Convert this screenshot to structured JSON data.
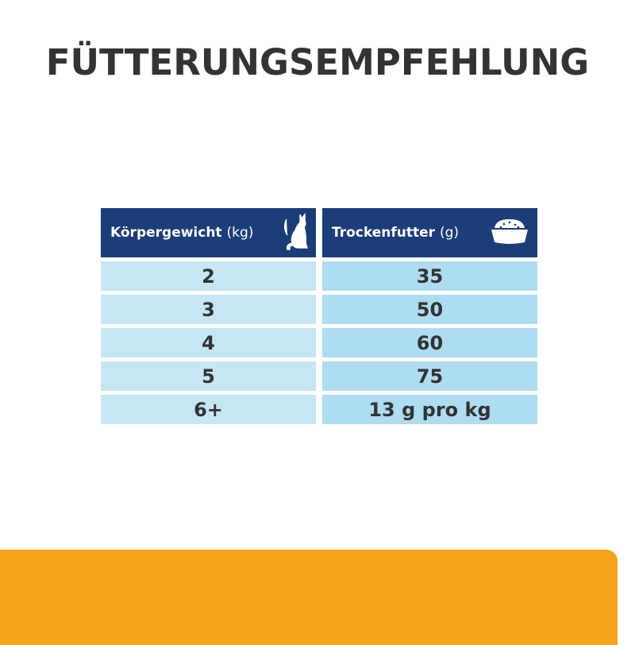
{
  "title": "FÜTTERUNGSEMPFEHLUNG",
  "table": {
    "weight_header": {
      "label": "Körpergewicht",
      "unit": "(kg)",
      "icon": "cat-icon"
    },
    "food_header": {
      "label": "Trockenfutter",
      "unit": "(g)",
      "icon": "food-bowl-icon"
    },
    "rows": [
      {
        "weight": "2",
        "food": "35"
      },
      {
        "weight": "3",
        "food": "50"
      },
      {
        "weight": "4",
        "food": "60"
      },
      {
        "weight": "5",
        "food": "75"
      },
      {
        "weight": "6+",
        "food": "13 g pro kg"
      }
    ]
  },
  "colors": {
    "header": "#1b3d78",
    "cell_left": "#c6e6f4",
    "cell_right": "#aedcf0",
    "accent": "#f7a21b",
    "text": "#333333"
  }
}
